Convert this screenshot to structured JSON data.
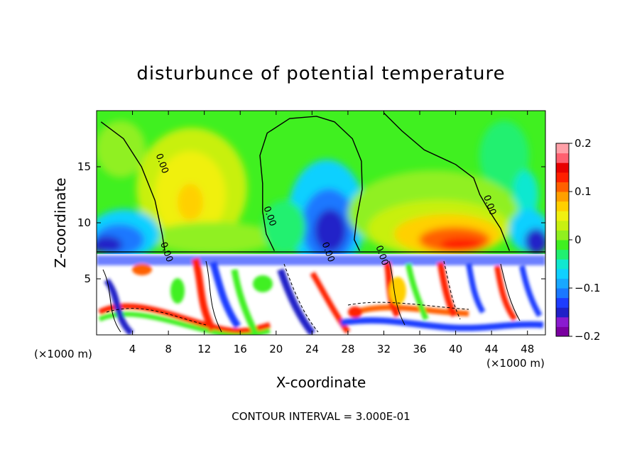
{
  "chart_data": {
    "type": "heatmap",
    "title": "disturbunce of potential temperature",
    "xlabel": "X-coordinate",
    "ylabel": "Z-coordinate",
    "x_unit_left": "(×1000 m)",
    "x_unit_right": "(×1000 m)",
    "xlim": [
      0,
      50
    ],
    "ylim": [
      0,
      20
    ],
    "x_ticks": [
      4,
      8,
      12,
      16,
      20,
      24,
      28,
      32,
      36,
      40,
      44,
      48
    ],
    "y_ticks": [
      5,
      10,
      15
    ],
    "colorbar": {
      "range": [
        -0.2,
        0.2
      ],
      "ticks": [
        {
          "value": 0.2,
          "label": "0.2"
        },
        {
          "value": 0.1,
          "label": "0.1"
        },
        {
          "value": 0,
          "label": "0"
        },
        {
          "value": -0.1,
          "label": "−0.1"
        },
        {
          "value": -0.2,
          "label": "−0.2"
        }
      ],
      "colors": [
        "#7a00a0",
        "#8a1bd0",
        "#2020c8",
        "#1e3cff",
        "#1a78ff",
        "#18a8ff",
        "#10d0ff",
        "#10e8d0",
        "#20f070",
        "#40f020",
        "#90f020",
        "#c8f010",
        "#f0f010",
        "#ffd000",
        "#ffa000",
        "#ff6000",
        "#ff2000",
        "#e80000",
        "#ff6070",
        "#ffa0a8"
      ]
    },
    "contour_interval_text": "CONTOUR INTERVAL = 3.000E-01",
    "contour_labels": [
      {
        "text": "0.00",
        "x": 7,
        "z": 15.2
      },
      {
        "text": "0.00",
        "x": 19,
        "z": 10.5
      },
      {
        "text": "0.00",
        "x": 43.5,
        "z": 11.5
      },
      {
        "text": "0.00",
        "x": 7.5,
        "z": 7.3
      },
      {
        "text": "0.00",
        "x": 25.5,
        "z": 7.3
      },
      {
        "text": "0.00",
        "x": 31.5,
        "z": 7.0
      }
    ],
    "zero_contours": [
      [
        [
          0.5,
          19
        ],
        [
          3,
          17.5
        ],
        [
          5,
          15
        ],
        [
          6.5,
          12
        ],
        [
          7.3,
          9
        ],
        [
          7.6,
          7.5
        ]
      ],
      [
        [
          19.8,
          7.5
        ],
        [
          18.9,
          9
        ],
        [
          18.5,
          11
        ],
        [
          18.5,
          13.5
        ],
        [
          18.2,
          16
        ],
        [
          19,
          18
        ],
        [
          21.5,
          19.3
        ],
        [
          24.5,
          19.5
        ],
        [
          26.5,
          19
        ],
        [
          28.5,
          17.5
        ],
        [
          29.5,
          15.5
        ],
        [
          29.6,
          13
        ],
        [
          29,
          10.5
        ],
        [
          28.7,
          8.5
        ],
        [
          29.3,
          7.5
        ]
      ],
      [
        [
          32,
          19.8
        ],
        [
          34,
          18.2
        ],
        [
          36.5,
          16.5
        ],
        [
          40,
          15.2
        ],
        [
          42,
          14
        ],
        [
          42.7,
          12.5
        ],
        [
          43.8,
          11
        ],
        [
          45,
          9.5
        ],
        [
          46,
          7.5
        ]
      ],
      [
        [
          0,
          7.4
        ],
        [
          50,
          7.4
        ]
      ]
    ]
  }
}
